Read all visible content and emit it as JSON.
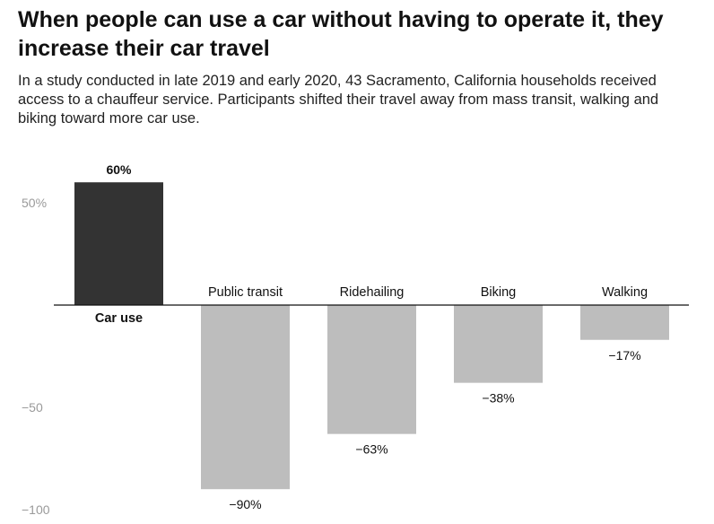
{
  "title": "When people can use a car without having to operate it, they increase their car travel",
  "subtitle": "In a study conducted in late 2019 and early 2020, 43 Sacramento, California households received access to a chauffeur service. Participants shifted their travel away from mass transit, walking and biking toward more car use.",
  "colors": {
    "positive": "#333333",
    "negative": "#bdbdbd",
    "axis": "#111111",
    "tick": "#9a9a9a"
  },
  "chart_data": {
    "type": "bar",
    "categories": [
      "Car use",
      "Public transit",
      "Ridehailing",
      "Biking",
      "Walking"
    ],
    "values": [
      60,
      -90,
      -63,
      -38,
      -17
    ],
    "value_labels": [
      "60%",
      "−90%",
      "−63%",
      "−38%",
      "−17%"
    ],
    "yticks": [
      50,
      -50,
      -100
    ],
    "ytick_labels": [
      "50%",
      "−50",
      "−100"
    ],
    "ylim": [
      -100,
      60
    ],
    "grid": false,
    "legend": "none"
  }
}
